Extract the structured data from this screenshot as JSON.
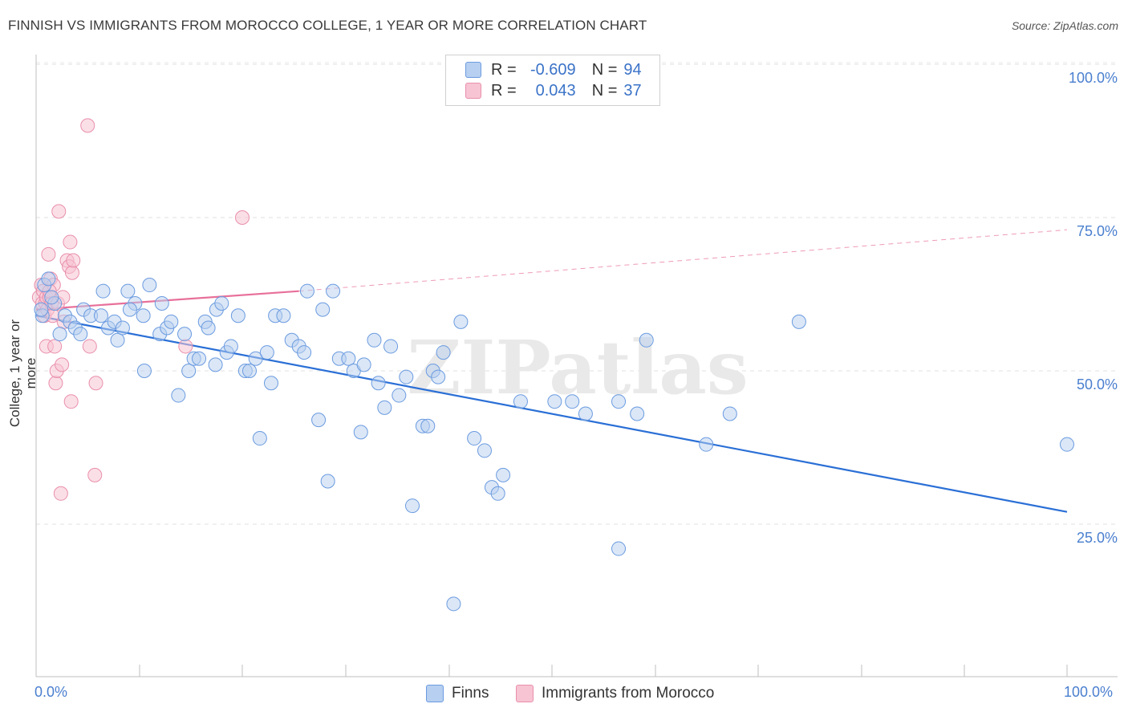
{
  "title": "FINNISH VS IMMIGRANTS FROM MOROCCO COLLEGE, 1 YEAR OR MORE CORRELATION CHART",
  "source": "Source: ZipAtlas.com",
  "legend": {
    "rows": [
      {
        "r_label": "R =",
        "r_value": "-0.609",
        "n_label": "N =",
        "n_value": "94"
      },
      {
        "r_label": "R =",
        "r_value": "0.043",
        "n_label": "N =",
        "n_value": "37"
      }
    ]
  },
  "bottom_legend": {
    "finns": "Finns",
    "morocco": "Immigrants from Morocco"
  },
  "colors": {
    "blue": "#2a6fd6",
    "pink": "#e8709a",
    "blue_fill": "#b7cff0",
    "pink_fill": "#f7c4d4"
  },
  "chart_data": {
    "type": "scatter",
    "title": "FINNISH VS IMMIGRANTS FROM MOROCCO COLLEGE, 1 YEAR OR MORE CORRELATION CHART",
    "xlabel": "",
    "ylabel": "College, 1 year or more",
    "xlim": [
      0,
      100
    ],
    "ylim": [
      0,
      105
    ],
    "x_tick_labels": [
      "0.0%",
      "100.0%"
    ],
    "y_tick_labels": [
      "100.0%",
      "75.0%",
      "50.0%",
      "25.0%"
    ],
    "y_ticks": [
      100,
      75,
      50,
      25
    ],
    "watermark": "ZIPatlas",
    "series": [
      {
        "name": "Finns",
        "color": "#2a6fd6",
        "trend": {
          "x": [
            0,
            100
          ],
          "y": [
            59,
            27
          ]
        },
        "points": [
          [
            0.6,
            59
          ],
          [
            0.8,
            64
          ],
          [
            1.2,
            65
          ],
          [
            1.8,
            61
          ],
          [
            2.3,
            56
          ],
          [
            2.8,
            59
          ],
          [
            3.3,
            58
          ],
          [
            3.8,
            57
          ],
          [
            4.3,
            56
          ],
          [
            4.6,
            60
          ],
          [
            5.3,
            59
          ],
          [
            6.3,
            59
          ],
          [
            6.5,
            63
          ],
          [
            7.0,
            57
          ],
          [
            7.6,
            58
          ],
          [
            7.9,
            55
          ],
          [
            8.4,
            57
          ],
          [
            8.9,
            63
          ],
          [
            9.6,
            61
          ],
          [
            10.4,
            59
          ],
          [
            10.5,
            50
          ],
          [
            11.0,
            64
          ],
          [
            12.0,
            56
          ],
          [
            12.2,
            61
          ],
          [
            12.7,
            57
          ],
          [
            13.1,
            58
          ],
          [
            13.8,
            46
          ],
          [
            14.4,
            56
          ],
          [
            14.8,
            50
          ],
          [
            15.3,
            52
          ],
          [
            15.8,
            52
          ],
          [
            16.4,
            58
          ],
          [
            16.7,
            57
          ],
          [
            17.4,
            51
          ],
          [
            17.5,
            60
          ],
          [
            18.0,
            61
          ],
          [
            18.5,
            53
          ],
          [
            18.9,
            54
          ],
          [
            19.6,
            59
          ],
          [
            20.3,
            50
          ],
          [
            20.7,
            50
          ],
          [
            21.3,
            52
          ],
          [
            21.7,
            39
          ],
          [
            22.4,
            53
          ],
          [
            22.8,
            48
          ],
          [
            23.2,
            59
          ],
          [
            24.0,
            59
          ],
          [
            24.8,
            55
          ],
          [
            25.5,
            54
          ],
          [
            26.0,
            53
          ],
          [
            26.3,
            63
          ],
          [
            27.4,
            42
          ],
          [
            27.8,
            60
          ],
          [
            28.3,
            32
          ],
          [
            28.8,
            63
          ],
          [
            29.4,
            52
          ],
          [
            30.3,
            52
          ],
          [
            30.8,
            50
          ],
          [
            31.5,
            40
          ],
          [
            31.8,
            51
          ],
          [
            32.8,
            55
          ],
          [
            33.2,
            48
          ],
          [
            33.8,
            44
          ],
          [
            34.4,
            54
          ],
          [
            35.2,
            46
          ],
          [
            35.9,
            49
          ],
          [
            36.5,
            28
          ],
          [
            37.5,
            41
          ],
          [
            38.0,
            41
          ],
          [
            38.5,
            50
          ],
          [
            39.0,
            49
          ],
          [
            39.5,
            53
          ],
          [
            40.5,
            12
          ],
          [
            41.2,
            58
          ],
          [
            42.5,
            39
          ],
          [
            43.5,
            37
          ],
          [
            44.2,
            31
          ],
          [
            44.8,
            30
          ],
          [
            45.3,
            33
          ],
          [
            47.0,
            45
          ],
          [
            50.3,
            45
          ],
          [
            52.0,
            45
          ],
          [
            53.3,
            43
          ],
          [
            56.5,
            45
          ],
          [
            56.5,
            21
          ],
          [
            58.3,
            43
          ],
          [
            59.2,
            55
          ],
          [
            65.0,
            38
          ],
          [
            67.3,
            43
          ],
          [
            74.0,
            58
          ],
          [
            100.0,
            38
          ],
          [
            0.5,
            60
          ],
          [
            1.5,
            62
          ],
          [
            9.1,
            60
          ]
        ]
      },
      {
        "name": "Immigrants from Morocco",
        "color": "#e8709a",
        "trend": {
          "x": [
            0,
            25.5
          ],
          "y": [
            60,
            63
          ]
        },
        "trend_dashed": {
          "x": [
            25.5,
            100
          ],
          "y": [
            63,
            73
          ]
        },
        "points": [
          [
            0.3,
            62
          ],
          [
            0.5,
            64
          ],
          [
            0.6,
            61
          ],
          [
            0.7,
            63
          ],
          [
            0.8,
            59
          ],
          [
            0.9,
            61
          ],
          [
            1.0,
            54
          ],
          [
            1.0,
            62
          ],
          [
            1.1,
            60
          ],
          [
            1.2,
            69
          ],
          [
            1.3,
            62
          ],
          [
            1.4,
            65
          ],
          [
            1.5,
            61
          ],
          [
            1.6,
            59
          ],
          [
            1.7,
            64
          ],
          [
            1.8,
            54
          ],
          [
            1.9,
            48
          ],
          [
            2.0,
            50
          ],
          [
            2.1,
            61
          ],
          [
            2.2,
            76
          ],
          [
            2.4,
            30
          ],
          [
            2.5,
            51
          ],
          [
            2.6,
            62
          ],
          [
            2.7,
            58
          ],
          [
            3.0,
            68
          ],
          [
            3.2,
            67
          ],
          [
            3.3,
            71
          ],
          [
            3.5,
            66
          ],
          [
            3.4,
            45
          ],
          [
            3.6,
            68
          ],
          [
            5.0,
            90
          ],
          [
            5.2,
            54
          ],
          [
            5.8,
            48
          ],
          [
            5.7,
            33
          ],
          [
            14.5,
            54
          ],
          [
            20.0,
            75
          ],
          [
            1.3,
            63
          ]
        ]
      }
    ]
  }
}
